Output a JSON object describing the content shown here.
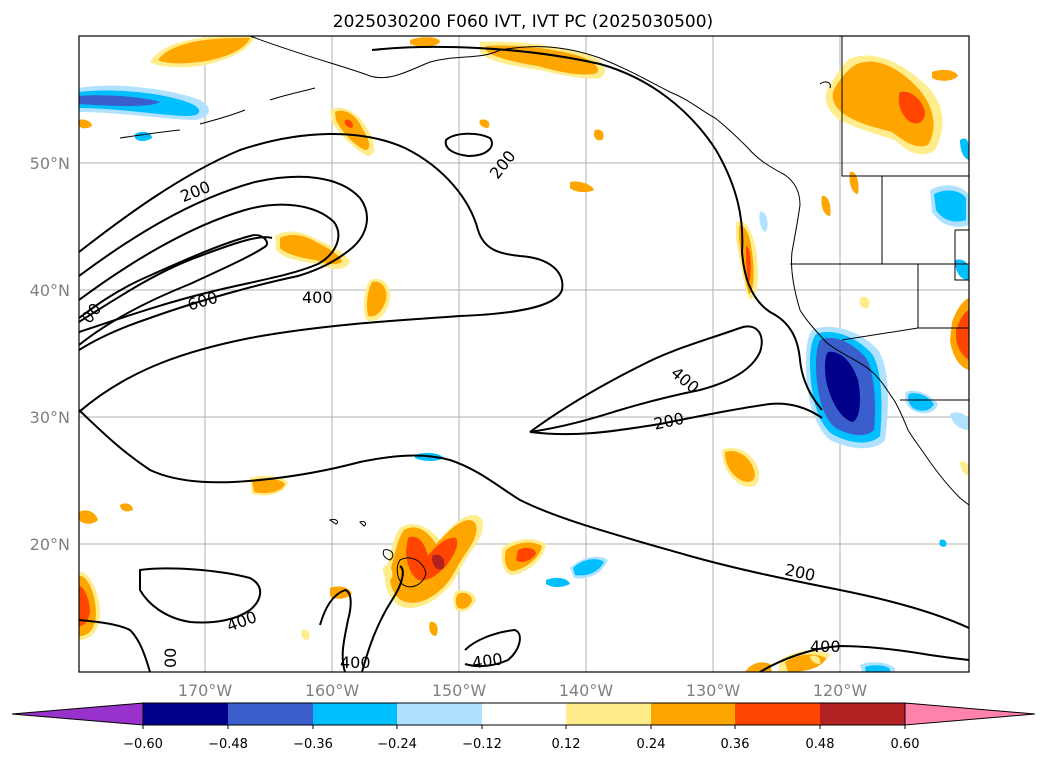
{
  "title": "2025030200 F060 IVT, IVT PC (2025030500)",
  "lat_labels": [
    "50°N",
    "40°N",
    "30°N",
    "20°N"
  ],
  "lon_labels": [
    "170°W",
    "160°W",
    "150°W",
    "140°W",
    "130°W",
    "120°W"
  ],
  "contour_labels": [
    "200",
    "200",
    "600",
    "400",
    "200",
    "400",
    "200",
    "200",
    "400",
    "400",
    "400",
    "400",
    "400",
    "00",
    "00"
  ],
  "colorbar": {
    "ticks": [
      "−0.60",
      "−0.48",
      "−0.36",
      "−0.24",
      "−0.12",
      "0.12",
      "0.24",
      "0.36",
      "0.48",
      "0.60"
    ],
    "colors": [
      "#9932cc",
      "#00008b",
      "#3a5fcd",
      "#00bfff",
      "#b0e2ff",
      "#ffffff",
      "#ffec8b",
      "#ffa500",
      "#ff4500",
      "#b22222",
      "#ff82ab"
    ]
  }
}
